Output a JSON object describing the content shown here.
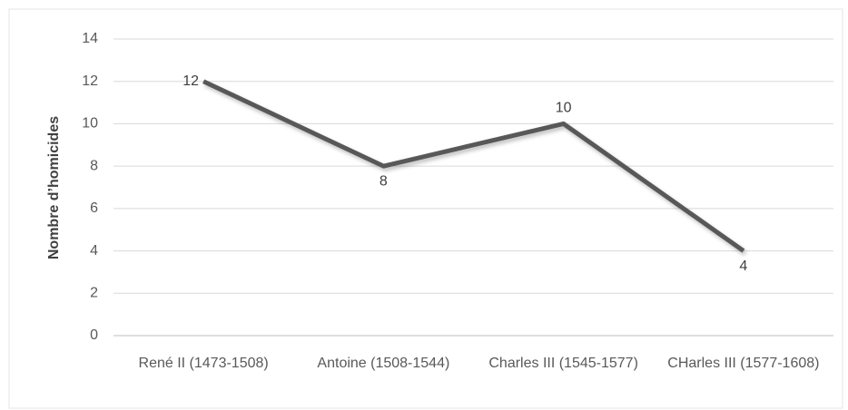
{
  "chart_data": {
    "type": "line",
    "y_label": "Nombre d’homicides",
    "categories": [
      "René II (1473-1508)",
      "Antoine (1508-1544)",
      "Charles III (1545-1577)",
      "CHarles III (1577-1608)"
    ],
    "series": [
      {
        "name": "Nombre d’homicides",
        "color": "#595959",
        "values": [
          12,
          8,
          10,
          4
        ]
      }
    ],
    "ylim": [
      0,
      14
    ],
    "yticks": [
      0,
      2,
      4,
      6,
      8,
      10,
      12,
      14
    ],
    "grid": true,
    "data_labels": true
  }
}
